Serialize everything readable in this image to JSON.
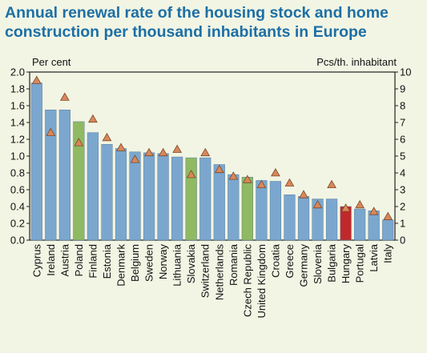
{
  "title_line1": "Annual renewal rate of the housing stock and home",
  "title_line2": "construction per thousand inhabitants in Europe",
  "chart_data": {
    "type": "bar",
    "title": "Annual renewal rate of the housing stock and home construction per thousand inhabitants in Europe",
    "ylabel": "Per cent",
    "y2label": "Pcs/th. inhabitant",
    "ylim": [
      0,
      2.0
    ],
    "y2lim": [
      0,
      10
    ],
    "yticks": [
      "0.0",
      "0.2",
      "0.4",
      "0.6",
      "0.8",
      "1.0",
      "1.2",
      "1.4",
      "1.6",
      "1.8",
      "2.0"
    ],
    "y2ticks": [
      "0",
      "1",
      "2",
      "3",
      "4",
      "5",
      "6",
      "7",
      "8",
      "9",
      "10"
    ],
    "categories": [
      "Cyprus",
      "Ireland",
      "Austria",
      "Poland",
      "Finland",
      "Estonia",
      "Denmark",
      "Belgium",
      "Sweden",
      "Norway",
      "Lithuania",
      "Slovakia",
      "Switzerland",
      "Netherlands",
      "Romania",
      "Czech Republic",
      "United Kingdom",
      "Croatia",
      "Greece",
      "Germany",
      "Slovenia",
      "Bulgaria",
      "Hungary",
      "Portugal",
      "Latvia",
      "Italy"
    ],
    "series": [
      {
        "values": [
          1.87,
          1.55,
          1.55,
          1.41,
          1.28,
          1.14,
          1.09,
          1.05,
          1.04,
          1.03,
          0.99,
          0.98,
          0.98,
          0.9,
          0.78,
          0.75,
          0.71,
          0.7,
          0.54,
          0.52,
          0.49,
          0.49,
          0.4,
          0.37,
          0.35,
          0.24
        ]
      },
      {
        "values": [
          9.5,
          6.4,
          8.5,
          5.8,
          7.2,
          6.1,
          5.5,
          4.8,
          5.2,
          5.2,
          5.4,
          3.9,
          5.2,
          4.2,
          3.8,
          3.6,
          3.3,
          4.0,
          3.4,
          2.7,
          2.1,
          3.3,
          1.9,
          2.1,
          1.7,
          1.4
        ]
      }
    ],
    "bar_colors": [
      "#7ba7cf",
      "#7ba7cf",
      "#7ba7cf",
      "#8fba62",
      "#7ba7cf",
      "#7ba7cf",
      "#7ba7cf",
      "#7ba7cf",
      "#7ba7cf",
      "#7ba7cf",
      "#7ba7cf",
      "#8fba62",
      "#7ba7cf",
      "#7ba7cf",
      "#7ba7cf",
      "#8fba62",
      "#7ba7cf",
      "#7ba7cf",
      "#7ba7cf",
      "#7ba7cf",
      "#7ba7cf",
      "#7ba7cf",
      "#c0282a",
      "#7ba7cf",
      "#7ba7cf",
      "#7ba7cf"
    ],
    "marker_color": "#d9875a",
    "background": "#f2f5e4",
    "title_color": "#1d6fa5",
    "grid": false
  }
}
